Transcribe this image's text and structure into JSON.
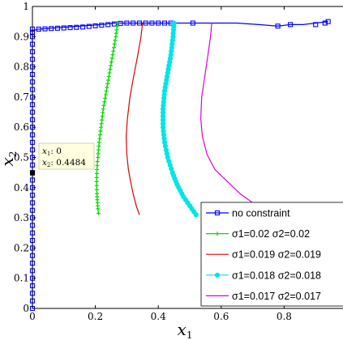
{
  "chart_data": {
    "type": "line",
    "title": "",
    "xlabel": "x",
    "xlabel_sub": "1",
    "ylabel": "x",
    "ylabel_sub": "2",
    "xlim": [
      0,
      1
    ],
    "ylim": [
      0,
      1
    ],
    "xticks": [
      "0",
      "0.2",
      "0.4",
      "0.6",
      "0.8",
      "1"
    ],
    "yticks": [
      "0",
      "0.1",
      "0.2",
      "0.3",
      "0.4",
      "0.5",
      "0.6",
      "0.7",
      "0.8",
      "0.9",
      "1"
    ],
    "grid": false,
    "legend_position": "bottom-right",
    "series": [
      {
        "name": "no constraint",
        "color": "#0000ff",
        "marker": "square",
        "x": [
          0,
          0,
          0,
          0,
          0,
          0,
          0,
          0,
          0,
          0,
          0,
          0,
          0,
          0,
          0,
          0,
          0,
          0,
          0,
          0,
          0.02,
          0.08,
          0.15,
          0.22,
          0.26,
          0.31,
          0.38,
          0.45,
          0.52,
          0.58,
          0.65,
          0.72,
          0.78,
          0.82,
          0.86,
          0.9,
          0.94
        ],
        "y": [
          0,
          0.05,
          0.1,
          0.15,
          0.2,
          0.25,
          0.3,
          0.35,
          0.4,
          0.45,
          0.5,
          0.55,
          0.6,
          0.65,
          0.7,
          0.75,
          0.8,
          0.85,
          0.9,
          0.92,
          0.925,
          0.93,
          0.935,
          0.94,
          0.945,
          0.945,
          0.945,
          0.945,
          0.945,
          0.945,
          0.945,
          0.94,
          0.935,
          0.94,
          0.94,
          0.945,
          0.95
        ],
        "markers_x": [
          0,
          0,
          0,
          0,
          0,
          0,
          0,
          0,
          0,
          0,
          0,
          0,
          0,
          0,
          0,
          0,
          0,
          0,
          0,
          0,
          0,
          0,
          0,
          0,
          0,
          0,
          0,
          0,
          0,
          0,
          0,
          0,
          0,
          0,
          0,
          0,
          0,
          0,
          0,
          0.02,
          0.04,
          0.06,
          0.08,
          0.1,
          0.12,
          0.14,
          0.16,
          0.18,
          0.2,
          0.22,
          0.24,
          0.26,
          0.28,
          0.3,
          0.32,
          0.34,
          0.36,
          0.38,
          0.4,
          0.42,
          0.44,
          0.51,
          0.78,
          0.82,
          0.9,
          0.93,
          0.94
        ],
        "markers_y": [
          0,
          0.025,
          0.05,
          0.075,
          0.1,
          0.125,
          0.15,
          0.175,
          0.2,
          0.225,
          0.25,
          0.275,
          0.3,
          0.325,
          0.35,
          0.375,
          0.4,
          0.425,
          0.45,
          0.475,
          0.5,
          0.525,
          0.55,
          0.575,
          0.6,
          0.625,
          0.65,
          0.675,
          0.7,
          0.725,
          0.75,
          0.775,
          0.8,
          0.825,
          0.85,
          0.875,
          0.9,
          0.915,
          0.925,
          0.925,
          0.926,
          0.927,
          0.928,
          0.929,
          0.93,
          0.931,
          0.932,
          0.934,
          0.936,
          0.938,
          0.94,
          0.942,
          0.944,
          0.945,
          0.945,
          0.945,
          0.945,
          0.945,
          0.945,
          0.945,
          0.945,
          0.945,
          0.935,
          0.94,
          0.94,
          0.945,
          0.95
        ]
      },
      {
        "name": "σ1=0.02 σ2=0.02",
        "color": "#00dd00",
        "marker": "plus",
        "x": [
          0.27,
          0.265,
          0.255,
          0.245,
          0.235,
          0.225,
          0.218,
          0.212,
          0.208,
          0.205,
          0.204,
          0.205,
          0.207,
          0.208,
          0.21
        ],
        "y": [
          0.945,
          0.9,
          0.84,
          0.78,
          0.72,
          0.66,
          0.6,
          0.55,
          0.5,
          0.46,
          0.42,
          0.38,
          0.35,
          0.33,
          0.315
        ],
        "markers_every": 0.012
      },
      {
        "name": "σ1=0.019 σ2=0.019",
        "color": "#dd0000",
        "marker": "none",
        "x": [
          0.35,
          0.345,
          0.335,
          0.322,
          0.31,
          0.302,
          0.298,
          0.3,
          0.305,
          0.312,
          0.32,
          0.33,
          0.34
        ],
        "y": [
          0.945,
          0.9,
          0.84,
          0.77,
          0.7,
          0.63,
          0.57,
          0.51,
          0.46,
          0.42,
          0.38,
          0.34,
          0.31
        ]
      },
      {
        "name": "σ1=0.018 σ2=0.018",
        "color": "#00e5e5",
        "marker": "circle",
        "x": [
          0.45,
          0.447,
          0.44,
          0.43,
          0.42,
          0.415,
          0.415,
          0.42,
          0.43,
          0.445,
          0.46,
          0.48,
          0.5,
          0.52
        ],
        "y": [
          0.945,
          0.9,
          0.84,
          0.78,
          0.72,
          0.66,
          0.6,
          0.55,
          0.5,
          0.45,
          0.41,
          0.37,
          0.34,
          0.31
        ],
        "markers_every": 0.012
      },
      {
        "name": "σ1=0.017 σ2=0.017",
        "color": "#dd00dd",
        "marker": "none",
        "x": [
          0.57,
          0.566,
          0.558,
          0.548,
          0.538,
          0.535,
          0.54,
          0.555,
          0.58,
          0.62,
          0.66,
          0.7,
          0.74
        ],
        "y": [
          0.945,
          0.9,
          0.84,
          0.77,
          0.7,
          0.63,
          0.57,
          0.51,
          0.46,
          0.42,
          0.38,
          0.35,
          0.33
        ]
      }
    ],
    "datatip": {
      "x_label": "x",
      "x_sub": "1",
      "x_value": "0",
      "y_label": "x",
      "y_sub": "2",
      "y_value": "0.4484",
      "x": 0,
      "y": 0.4484
    }
  }
}
